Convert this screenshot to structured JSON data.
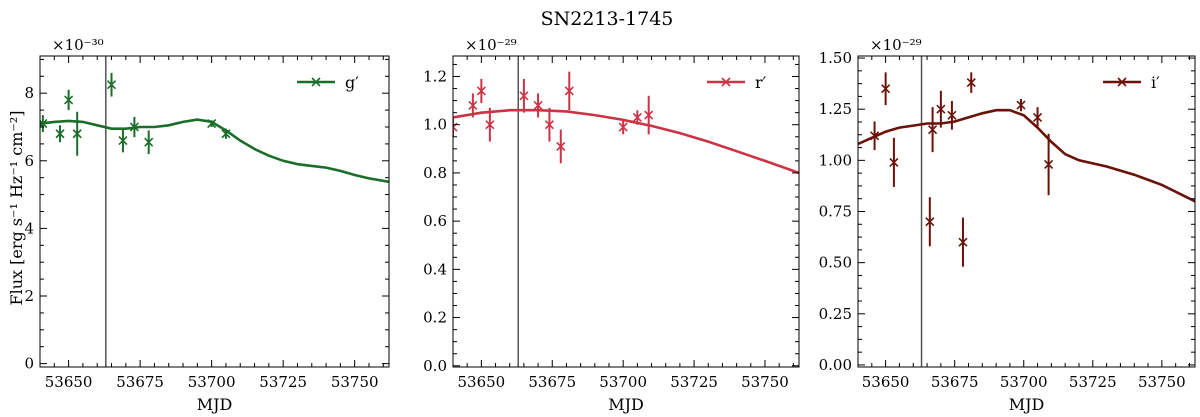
{
  "figure": {
    "title": "SN2213-1745"
  },
  "chart_data": [
    {
      "type": "line",
      "band": "g′",
      "color": "#1b6e2a",
      "xlabel": "MJD",
      "ylabel": "Flux [erg s⁻¹ Hz⁻¹ cm⁻²]",
      "offset_text": "×10⁻³⁰",
      "xlim": [
        53640,
        53762
      ],
      "ylim": [
        -0.1,
        9.1
      ],
      "xticks": [
        53650,
        53675,
        53700,
        53725,
        53750
      ],
      "xtick_labels": [
        "53650",
        "53675",
        "53700",
        "53725",
        "53750"
      ],
      "yticks": [
        0,
        2,
        4,
        6,
        8
      ],
      "ytick_labels": [
        "0",
        "2",
        "4",
        "6",
        "8"
      ],
      "vline": 53663,
      "legend": {
        "label": "g′",
        "loc": "upper right"
      },
      "points": [
        {
          "x": 53641,
          "y": 7.1,
          "yerr": 0.25
        },
        {
          "x": 53647,
          "y": 6.8,
          "yerr": 0.25
        },
        {
          "x": 53650,
          "y": 7.8,
          "yerr": 0.3
        },
        {
          "x": 53653,
          "y": 6.8,
          "yerr": 0.65
        },
        {
          "x": 53665,
          "y": 8.25,
          "yerr": 0.35
        },
        {
          "x": 53669,
          "y": 6.6,
          "yerr": 0.35
        },
        {
          "x": 53673,
          "y": 7.0,
          "yerr": 0.3
        },
        {
          "x": 53678,
          "y": 6.55,
          "yerr": 0.35
        },
        {
          "x": 53700,
          "y": 7.1,
          "yerr": 0.1
        },
        {
          "x": 53705,
          "y": 6.8,
          "yerr": 0.15
        }
      ],
      "curve": {
        "x": [
          53640,
          53645,
          53650,
          53655,
          53660,
          53665,
          53670,
          53675,
          53680,
          53685,
          53690,
          53695,
          53700,
          53705,
          53710,
          53715,
          53720,
          53725,
          53730,
          53735,
          53740,
          53745,
          53750,
          53755,
          53762
        ],
        "y": [
          7.1,
          7.15,
          7.18,
          7.15,
          7.05,
          6.95,
          6.95,
          7.0,
          7.0,
          7.05,
          7.15,
          7.22,
          7.15,
          6.9,
          6.6,
          6.35,
          6.15,
          6.0,
          5.9,
          5.85,
          5.8,
          5.7,
          5.58,
          5.48,
          5.38
        ]
      }
    },
    {
      "type": "line",
      "band": "r′",
      "color": "#cc3344",
      "xlabel": "MJD",
      "ylabel": "",
      "offset_text": "×10⁻²⁹",
      "xlim": [
        53640,
        53762
      ],
      "ylim": [
        -0.005,
        1.285
      ],
      "xticks": [
        53650,
        53675,
        53700,
        53725,
        53750
      ],
      "xtick_labels": [
        "53650",
        "53675",
        "53700",
        "53725",
        "53750"
      ],
      "yticks": [
        0,
        0.2,
        0.4,
        0.6,
        0.8,
        1.0,
        1.2
      ],
      "ytick_labels": [
        "0.0",
        "0.2",
        "0.4",
        "0.6",
        "0.8",
        "1.0",
        "1.2"
      ],
      "vline": 53663,
      "legend": {
        "label": "r′",
        "loc": "upper right"
      },
      "points": [
        {
          "x": 53640,
          "y": 0.99,
          "yerr": 0.04
        },
        {
          "x": 53647,
          "y": 1.08,
          "yerr": 0.05
        },
        {
          "x": 53650,
          "y": 1.14,
          "yerr": 0.05
        },
        {
          "x": 53653,
          "y": 1.0,
          "yerr": 0.07
        },
        {
          "x": 53665,
          "y": 1.12,
          "yerr": 0.07
        },
        {
          "x": 53670,
          "y": 1.08,
          "yerr": 0.05
        },
        {
          "x": 53674,
          "y": 1.0,
          "yerr": 0.07
        },
        {
          "x": 53678,
          "y": 0.91,
          "yerr": 0.07
        },
        {
          "x": 53681,
          "y": 1.14,
          "yerr": 0.08
        },
        {
          "x": 53700,
          "y": 0.99,
          "yerr": 0.03
        },
        {
          "x": 53705,
          "y": 1.03,
          "yerr": 0.03
        },
        {
          "x": 53709,
          "y": 1.04,
          "yerr": 0.08
        }
      ],
      "curve": {
        "x": [
          53640,
          53650,
          53660,
          53670,
          53680,
          53690,
          53700,
          53710,
          53720,
          53730,
          53740,
          53750,
          53762
        ],
        "y": [
          1.03,
          1.05,
          1.06,
          1.06,
          1.055,
          1.04,
          1.02,
          0.995,
          0.965,
          0.93,
          0.89,
          0.85,
          0.8
        ]
      }
    },
    {
      "type": "line",
      "band": "i′",
      "color": "#6b1208",
      "xlabel": "MJD",
      "ylabel": "",
      "offset_text": "×10⁻²⁹",
      "xlim": [
        53640,
        53762
      ],
      "ylim": [
        -0.01,
        1.51
      ],
      "xticks": [
        53650,
        53675,
        53700,
        53725,
        53750
      ],
      "xtick_labels": [
        "53650",
        "53675",
        "53700",
        "53725",
        "53750"
      ],
      "yticks": [
        0,
        0.25,
        0.5,
        0.75,
        1.0,
        1.25,
        1.5
      ],
      "ytick_labels": [
        "0.00",
        "0.25",
        "0.50",
        "0.75",
        "1.00",
        "1.25",
        "1.50"
      ],
      "vline": 53663,
      "legend": {
        "label": "i′",
        "loc": "upper right"
      },
      "points": [
        {
          "x": 53646,
          "y": 1.12,
          "yerr": 0.07
        },
        {
          "x": 53650,
          "y": 1.35,
          "yerr": 0.08
        },
        {
          "x": 53653,
          "y": 0.99,
          "yerr": 0.12
        },
        {
          "x": 53666,
          "y": 0.7,
          "yerr": 0.12
        },
        {
          "x": 53667,
          "y": 1.15,
          "yerr": 0.11
        },
        {
          "x": 53670,
          "y": 1.25,
          "yerr": 0.09
        },
        {
          "x": 53674,
          "y": 1.22,
          "yerr": 0.07
        },
        {
          "x": 53678,
          "y": 0.6,
          "yerr": 0.12
        },
        {
          "x": 53681,
          "y": 1.38,
          "yerr": 0.05
        },
        {
          "x": 53699,
          "y": 1.27,
          "yerr": 0.03
        },
        {
          "x": 53705,
          "y": 1.21,
          "yerr": 0.05
        },
        {
          "x": 53709,
          "y": 0.98,
          "yerr": 0.15
        }
      ],
      "curve": {
        "x": [
          53640,
          53645,
          53650,
          53655,
          53660,
          53665,
          53670,
          53675,
          53680,
          53685,
          53690,
          53695,
          53700,
          53705,
          53710,
          53715,
          53720,
          53730,
          53740,
          53750,
          53762
        ],
        "y": [
          1.08,
          1.11,
          1.14,
          1.16,
          1.17,
          1.18,
          1.18,
          1.19,
          1.21,
          1.23,
          1.245,
          1.245,
          1.22,
          1.16,
          1.09,
          1.03,
          1.0,
          0.97,
          0.93,
          0.88,
          0.8
        ]
      }
    }
  ]
}
